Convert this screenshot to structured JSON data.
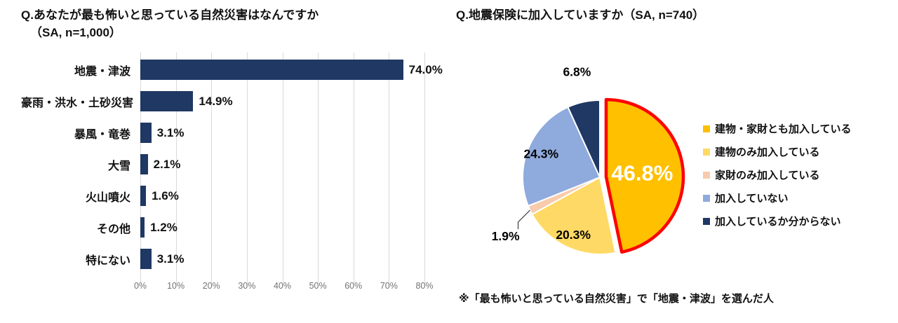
{
  "chart_data": [
    {
      "type": "bar",
      "orientation": "horizontal",
      "title_line1": "Q.あなたが最も怖いと思っている自然災害はなんですか",
      "title_line2": "（SA, n=1,000）",
      "categories": [
        "地震・津波",
        "豪雨・洪水・土砂災害",
        "暴風・竜巻",
        "大雪",
        "火山噴火",
        "その他",
        "特にない"
      ],
      "values": [
        74.0,
        14.9,
        3.1,
        2.1,
        1.6,
        1.2,
        3.1
      ],
      "value_labels": [
        "74.0%",
        "14.9%",
        "3.1%",
        "2.1%",
        "1.6%",
        "1.2%",
        "3.1%"
      ],
      "bar_color": "#1F3864",
      "xlim": [
        0,
        80
      ],
      "x_ticks": [
        "0%",
        "10%",
        "20%",
        "30%",
        "40%",
        "50%",
        "60%",
        "70%",
        "80%"
      ],
      "grid": true,
      "gridline_color": "#D9D9D9",
      "tick_color": "#737373"
    },
    {
      "type": "pie",
      "title": "Q.地震保険に加入していますか（SA, n=740）",
      "start_angle_deg": 0,
      "direction": "clockwise",
      "legend_position": "right",
      "slices": [
        {
          "label": "建物・家財とも加入している",
          "value": 46.8,
          "value_label": "46.8%",
          "color": "#FFC000",
          "exploded": true,
          "outline": "#FF0000",
          "label_style": "inside-big"
        },
        {
          "label": "建物のみ加入している",
          "value": 20.3,
          "value_label": "20.3%",
          "color": "#FFD965",
          "label_style": "inside"
        },
        {
          "label": "家財のみ加入している",
          "value": 1.9,
          "value_label": "1.9%",
          "color": "#F8CBAD",
          "label_style": "callout"
        },
        {
          "label": "加入していない",
          "value": 24.3,
          "value_label": "24.3%",
          "color": "#8FAADC",
          "label_style": "inside"
        },
        {
          "label": "加入しているか分からない",
          "value": 6.8,
          "value_label": "6.8%",
          "color": "#1F3864",
          "label_style": "outside"
        }
      ],
      "footnote": "※「最も怖いと思っている自然災害」で「地震・津波」を選んだ人"
    }
  ]
}
